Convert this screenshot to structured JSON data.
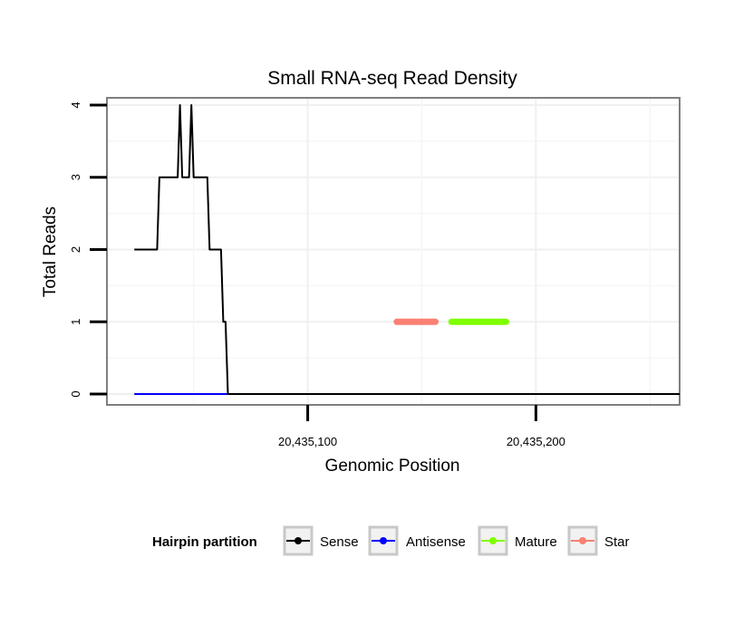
{
  "chart_data": {
    "type": "line",
    "title": "Small RNA-seq Read Density",
    "xlabel": "Genomic Position",
    "ylabel": "Total Reads",
    "xlim": [
      20435012,
      20435263
    ],
    "ylim": [
      -0.15,
      4.1
    ],
    "xticks": [
      20435100,
      20435200
    ],
    "xtick_labels": [
      "20,435,100",
      "20,435,200"
    ],
    "yticks": [
      0,
      1,
      2,
      3,
      4
    ],
    "ytick_labels": [
      "0",
      "1",
      "2",
      "3",
      "4"
    ],
    "grid": true,
    "legend_position": "bottom",
    "legend_title": "Hairpin partition",
    "series": [
      {
        "name": "Sense",
        "color": "#000000",
        "x": [
          20435024,
          20435034,
          20435035,
          20435043,
          20435044,
          20435045,
          20435048,
          20435049,
          20435050,
          20435056,
          20435057,
          20435062,
          20435063,
          20435064,
          20435065,
          20435190,
          20435263
        ],
        "y": [
          2,
          2,
          3,
          3,
          4,
          3,
          3,
          4,
          3,
          3,
          2,
          2,
          1,
          1,
          0,
          0,
          0
        ]
      },
      {
        "name": "Antisense",
        "color": "#0000ff",
        "x": [
          20435024,
          20435263
        ],
        "y": [
          0,
          0
        ]
      },
      {
        "name": "Mature",
        "color": "#7fff00",
        "x": [
          20435163,
          20435187
        ],
        "y": [
          1,
          1
        ]
      },
      {
        "name": "Star",
        "color": "#fa8072",
        "x": [
          20435139,
          20435156
        ],
        "y": [
          1,
          1
        ]
      }
    ]
  }
}
